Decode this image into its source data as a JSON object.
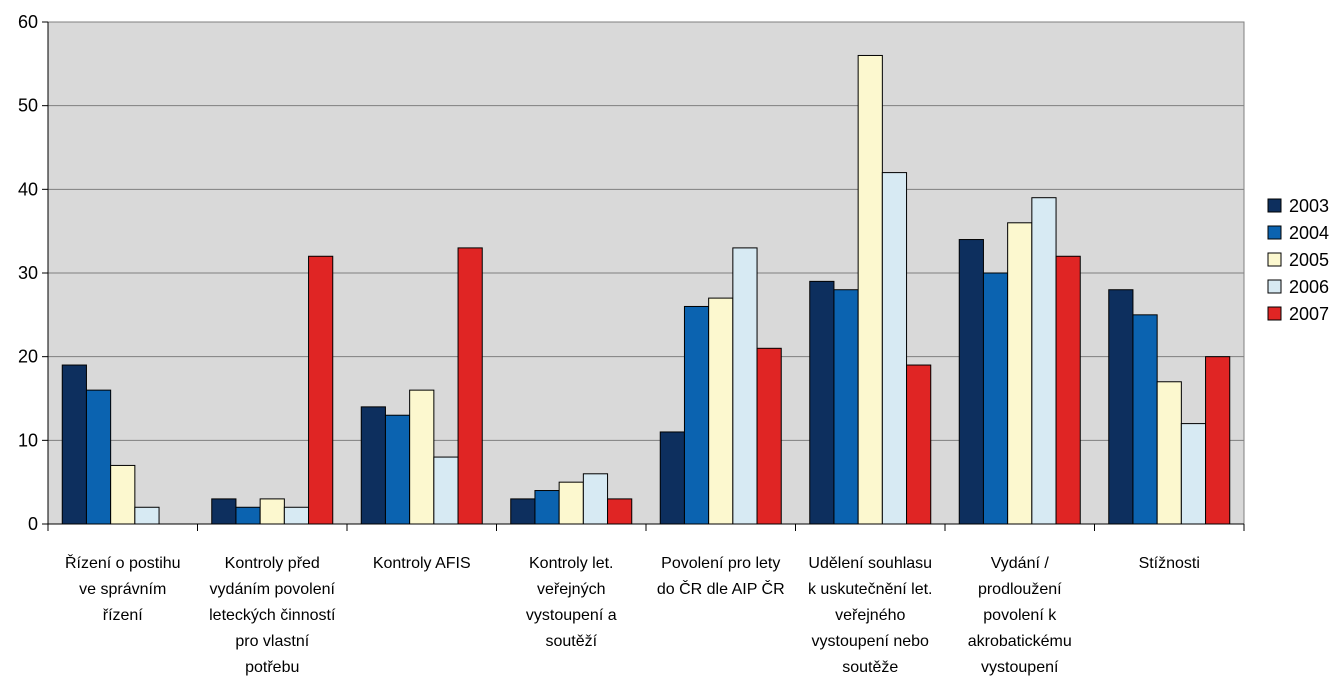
{
  "chart_data": {
    "type": "bar",
    "title": "",
    "xlabel": "",
    "ylabel": "",
    "ylim": [
      0,
      60
    ],
    "yticks": [
      0,
      10,
      20,
      30,
      40,
      50,
      60
    ],
    "grid": true,
    "legend_position": "right",
    "categories": [
      [
        "Řízení o postihu",
        "ve správním",
        "řízení"
      ],
      [
        "Kontroly před",
        "vydáním povolení",
        "leteckých činností",
        "pro vlastní",
        "potřebu"
      ],
      [
        "Kontroly AFIS"
      ],
      [
        "Kontroly let.",
        "veřejných",
        "vystoupení a",
        "soutěží"
      ],
      [
        "Povolení pro lety",
        "do ČR dle AIP ČR"
      ],
      [
        "Udělení souhlasu",
        "k uskutečnění let.",
        "veřejného",
        "vystoupení nebo",
        "soutěže"
      ],
      [
        "Vydání /",
        "prodloužení",
        "povolení k",
        "akrobatickému",
        "vystoupení"
      ],
      [
        "Stížnosti"
      ]
    ],
    "series": [
      {
        "name": "2003",
        "color": "#0d2f5e",
        "values": [
          19,
          3,
          14,
          3,
          11,
          29,
          34,
          28
        ]
      },
      {
        "name": "2004",
        "color": "#0b63b0",
        "values": [
          16,
          2,
          13,
          4,
          26,
          28,
          30,
          25
        ]
      },
      {
        "name": "2005",
        "color": "#fcf8cf",
        "values": [
          7,
          3,
          16,
          5,
          27,
          56,
          36,
          17
        ]
      },
      {
        "name": "2006",
        "color": "#d7eaf3",
        "values": [
          2,
          2,
          8,
          6,
          33,
          42,
          39,
          12
        ]
      },
      {
        "name": "2007",
        "color": "#e02524",
        "values": [
          0,
          32,
          33,
          3,
          21,
          19,
          32,
          20
        ]
      }
    ],
    "plot_background": "#d9d9d9"
  }
}
